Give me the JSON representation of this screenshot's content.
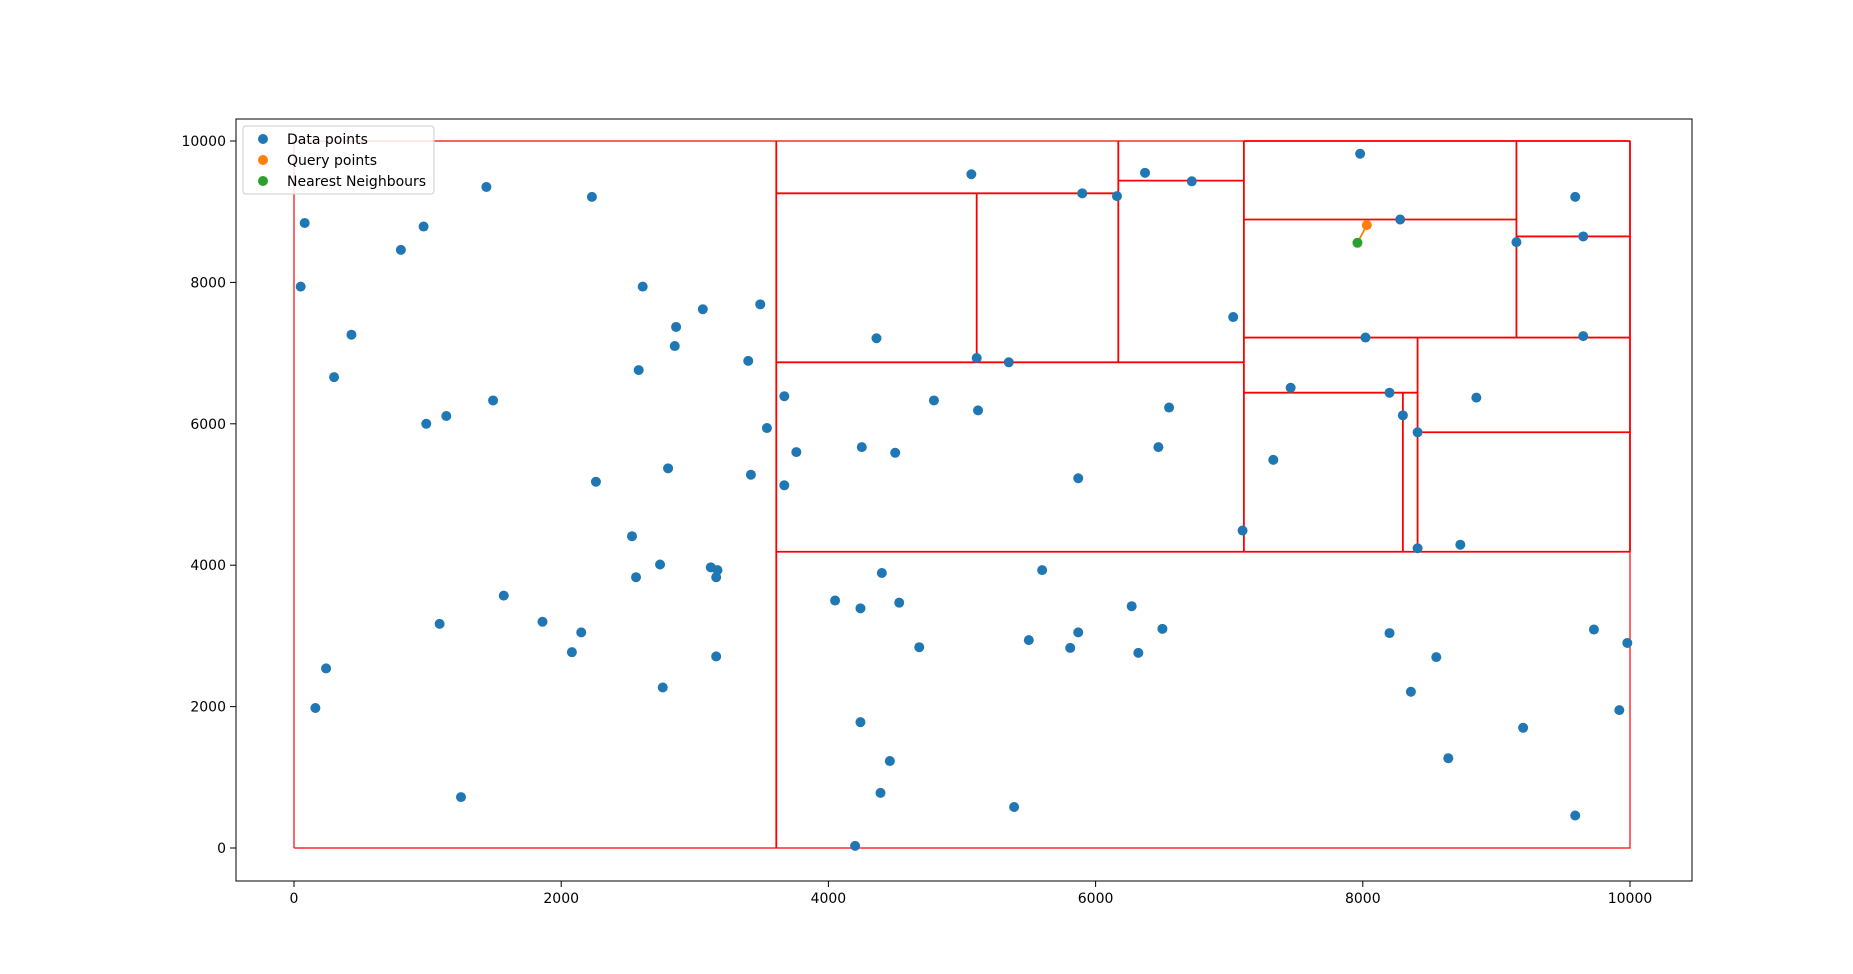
{
  "chart_data": {
    "type": "scatter",
    "title": "",
    "xlabel": "",
    "ylabel": "",
    "xlim": [
      -430,
      10480
    ],
    "ylim": [
      -450,
      10300
    ],
    "xticks": [
      0,
      2000,
      4000,
      6000,
      8000,
      10000
    ],
    "yticks": [
      0,
      2000,
      4000,
      6000,
      8000,
      10000
    ],
    "xtick_labels": [
      "0",
      "2000",
      "4000",
      "6000",
      "8000",
      "10000"
    ],
    "ytick_labels": [
      "0",
      "2000",
      "4000",
      "6000",
      "8000",
      "10000"
    ],
    "grid": false,
    "legend_position": "top-left",
    "colors": {
      "data": "#1f77b4",
      "query": "#ff7f0e",
      "neighbour": "#2ca02c",
      "partition": "#ff0000"
    },
    "series": [
      {
        "name": "Data points",
        "points": [
          [
            80,
            8840
          ],
          [
            50,
            7940
          ],
          [
            160,
            1980
          ],
          [
            240,
            2540
          ],
          [
            300,
            6660
          ],
          [
            430,
            7260
          ],
          [
            800,
            8460
          ],
          [
            970,
            8790
          ],
          [
            990,
            6000
          ],
          [
            1090,
            3170
          ],
          [
            1140,
            6110
          ],
          [
            1250,
            720
          ],
          [
            1440,
            9350
          ],
          [
            1490,
            6330
          ],
          [
            1570,
            3570
          ],
          [
            1860,
            3200
          ],
          [
            2080,
            2770
          ],
          [
            2150,
            3050
          ],
          [
            2230,
            9210
          ],
          [
            2260,
            5180
          ],
          [
            2530,
            4410
          ],
          [
            2560,
            3830
          ],
          [
            2580,
            6760
          ],
          [
            2610,
            7940
          ],
          [
            2740,
            4010
          ],
          [
            2760,
            2270
          ],
          [
            2800,
            5370
          ],
          [
            2850,
            7100
          ],
          [
            2860,
            7370
          ],
          [
            3060,
            7620
          ],
          [
            3120,
            3970
          ],
          [
            3160,
            3830
          ],
          [
            3160,
            2710
          ],
          [
            3170,
            3930
          ],
          [
            3400,
            6890
          ],
          [
            3420,
            5280
          ],
          [
            3490,
            7690
          ],
          [
            3540,
            5940
          ],
          [
            3670,
            6390
          ],
          [
            3670,
            5130
          ],
          [
            3760,
            5600
          ],
          [
            4050,
            3500
          ],
          [
            4200,
            30
          ],
          [
            4240,
            3390
          ],
          [
            4240,
            1780
          ],
          [
            4250,
            5670
          ],
          [
            4360,
            7210
          ],
          [
            4390,
            780
          ],
          [
            4400,
            3890
          ],
          [
            4460,
            1230
          ],
          [
            4500,
            5590
          ],
          [
            4530,
            3470
          ],
          [
            4680,
            2840
          ],
          [
            4790,
            6330
          ],
          [
            5070,
            9530
          ],
          [
            5110,
            6930
          ],
          [
            5120,
            6190
          ],
          [
            5350,
            6870
          ],
          [
            5390,
            580
          ],
          [
            5500,
            2940
          ],
          [
            5600,
            3930
          ],
          [
            5810,
            2830
          ],
          [
            5870,
            5230
          ],
          [
            5870,
            3050
          ],
          [
            5900,
            9260
          ],
          [
            6160,
            9220
          ],
          [
            6270,
            3420
          ],
          [
            6320,
            2760
          ],
          [
            6370,
            9550
          ],
          [
            6470,
            5670
          ],
          [
            6500,
            3100
          ],
          [
            6550,
            6230
          ],
          [
            6720,
            9430
          ],
          [
            7030,
            7510
          ],
          [
            7100,
            4490
          ],
          [
            7330,
            5490
          ],
          [
            7460,
            6510
          ],
          [
            7980,
            9820
          ],
          [
            8020,
            7220
          ],
          [
            8200,
            6440
          ],
          [
            8200,
            3040
          ],
          [
            8280,
            8890
          ],
          [
            8300,
            6120
          ],
          [
            8360,
            2210
          ],
          [
            8410,
            5880
          ],
          [
            8410,
            4240
          ],
          [
            8550,
            2700
          ],
          [
            8640,
            1270
          ],
          [
            8730,
            4290
          ],
          [
            8850,
            6370
          ],
          [
            9150,
            8570
          ],
          [
            9200,
            1700
          ],
          [
            9590,
            9210
          ],
          [
            9590,
            460
          ],
          [
            9650,
            8650
          ],
          [
            9650,
            7240
          ],
          [
            9730,
            3090
          ],
          [
            9920,
            1950
          ],
          [
            9980,
            2900
          ]
        ]
      },
      {
        "name": "Query points",
        "points": [
          [
            8030,
            8810
          ]
        ]
      },
      {
        "name": "Nearest Neighbours",
        "points": [
          [
            7960,
            8560
          ]
        ]
      }
    ],
    "partitions": [
      [
        [
          0,
          0
        ],
        [
          0,
          10000
        ],
        [
          10000,
          10000
        ],
        [
          10000,
          0
        ],
        [
          0,
          0
        ]
      ],
      [
        [
          3610,
          0
        ],
        [
          3610,
          10000
        ]
      ],
      [
        [
          3610,
          4190
        ],
        [
          10000,
          4190
        ]
      ],
      [
        [
          3610,
          6870
        ],
        [
          7110,
          6870
        ]
      ],
      [
        [
          7110,
          4190
        ],
        [
          7110,
          10000
        ]
      ],
      [
        [
          3610,
          9260
        ],
        [
          6170,
          9260
        ]
      ],
      [
        [
          6170,
          6870
        ],
        [
          6170,
          10000
        ]
      ],
      [
        [
          5110,
          6870
        ],
        [
          5110,
          9260
        ]
      ],
      [
        [
          6170,
          9440
        ],
        [
          7110,
          9440
        ]
      ],
      [
        [
          7110,
          7220
        ],
        [
          10000,
          7220
        ]
      ],
      [
        [
          9150,
          7220
        ],
        [
          9150,
          10000
        ]
      ],
      [
        [
          7110,
          8890
        ],
        [
          9150,
          8890
        ]
      ],
      [
        [
          9150,
          8650
        ],
        [
          10000,
          8650
        ]
      ],
      [
        [
          8410,
          4190
        ],
        [
          8410,
          7220
        ]
      ],
      [
        [
          7110,
          6440
        ],
        [
          8410,
          6440
        ]
      ],
      [
        [
          8300,
          4190
        ],
        [
          8300,
          6440
        ]
      ],
      [
        [
          8410,
          5880
        ],
        [
          10000,
          5880
        ]
      ],
      [
        [
          7110,
          10000
        ],
        [
          10000,
          10000
        ]
      ],
      [
        [
          10000,
          4190
        ],
        [
          10000,
          10000
        ]
      ],
      [
        [
          8030,
          8810
        ],
        [
          7960,
          8560
        ]
      ]
    ]
  }
}
